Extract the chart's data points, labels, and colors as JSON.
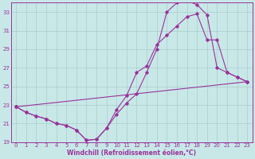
{
  "xlabel": "Windchill (Refroidissement éolien,°C)",
  "xlim": [
    -0.5,
    23.5
  ],
  "ylim": [
    19,
    34
  ],
  "yticks": [
    19,
    21,
    23,
    25,
    27,
    29,
    31,
    33
  ],
  "xticks": [
    0,
    1,
    2,
    3,
    4,
    5,
    6,
    7,
    8,
    9,
    10,
    11,
    12,
    13,
    14,
    15,
    16,
    17,
    18,
    19,
    20,
    21,
    22,
    23
  ],
  "bg_color": "#c8e8e8",
  "line_color": "#993399",
  "grid_color": "#aacccc",
  "lines": [
    {
      "x": [
        0,
        1,
        2,
        3,
        4,
        5,
        6,
        7,
        8,
        9,
        10,
        11,
        12,
        13,
        14,
        15,
        16,
        17,
        18,
        19,
        20,
        21,
        22,
        23
      ],
      "y": [
        22.8,
        22.2,
        21.8,
        21.5,
        21.0,
        20.8,
        20.3,
        19.2,
        19.3,
        20.5,
        22.0,
        23.2,
        24.2,
        26.5,
        29.0,
        33.0,
        34.0,
        34.2,
        33.8,
        32.7,
        27.0,
        26.5,
        26.0,
        25.5
      ]
    },
    {
      "x": [
        0,
        1,
        2,
        3,
        4,
        5,
        6,
        7,
        8,
        9,
        10,
        11,
        12,
        13,
        14,
        15,
        16,
        17,
        18,
        19,
        20,
        21,
        22,
        23
      ],
      "y": [
        22.8,
        22.2,
        21.8,
        21.5,
        21.0,
        20.8,
        20.3,
        19.2,
        19.3,
        20.5,
        22.5,
        24.0,
        26.5,
        27.2,
        29.5,
        30.5,
        31.5,
        32.5,
        32.8,
        30.0,
        30.0,
        26.5,
        26.0,
        25.5
      ]
    },
    {
      "x": [
        0,
        23
      ],
      "y": [
        22.8,
        25.5
      ]
    }
  ]
}
